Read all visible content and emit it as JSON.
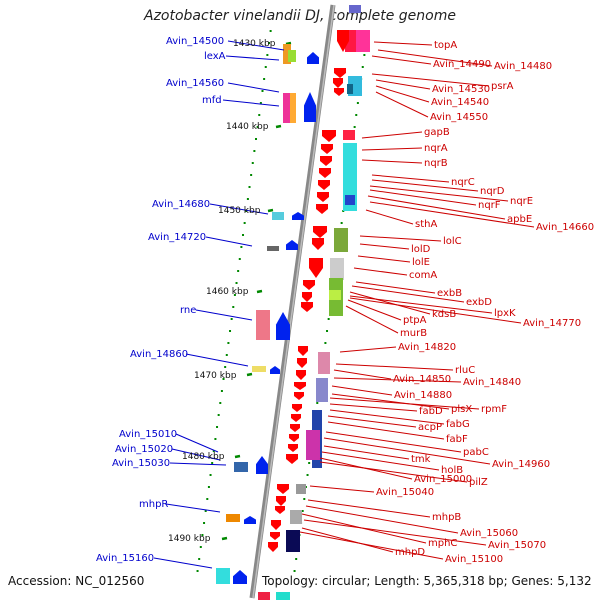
{
  "title": "Azotobacter vinelandii DJ, complete genome",
  "footer": {
    "accession": "Accession: NC_012560",
    "summary": "Topology: circular; Length: 5,365,318 bp; Genes: 5,132"
  },
  "colors": {
    "left_labels": "#0000cc",
    "right_labels": "#cc0000",
    "backbone": "#888888",
    "ticks": "#008800"
  },
  "scale": [
    {
      "label": "1430 kbp"
    },
    {
      "label": "1440 kbp"
    },
    {
      "label": "1450 kbp"
    },
    {
      "label": "1460 kbp"
    },
    {
      "label": "1470 kbp"
    },
    {
      "label": "1480 kbp"
    },
    {
      "label": "1490 kbp"
    }
  ],
  "left_genes": [
    "Avin_14500",
    "lexA",
    "Avin_14560",
    "mfd",
    "Avin_14680",
    "Avin_14720",
    "rne",
    "Avin_14860",
    "Avin_15010",
    "Avin_15020",
    "Avin_15030",
    "mhpR",
    "Avin_15160"
  ],
  "right_genes": [
    "topA",
    "Avin_14490",
    "Avin_14480",
    "psrA",
    "Avin_14530",
    "Avin_14540",
    "Avin_14550",
    "gapB",
    "nqrA",
    "nqrB",
    "nqrC",
    "nqrD",
    "nqrE",
    "nqrF",
    "apbE",
    "sthA",
    "Avin_14660",
    "lolC",
    "lolD",
    "lolE",
    "comA",
    "exbB",
    "exbD",
    "kdsB",
    "lpxK",
    "ptpA",
    "Avin_14770",
    "murB",
    "Avin_14820",
    "rluC",
    "Avin_14850",
    "Avin_14840",
    "Avin_14880",
    "plsX",
    "rpmF",
    "fabD",
    "fabG",
    "acpP",
    "fabF",
    "pabC",
    "Avin_14960",
    "tmk",
    "holB",
    "Avin_15000",
    "pilZ",
    "Avin_15040",
    "mhpB",
    "Avin_15060",
    "mphC",
    "Avin_15070",
    "mhpD",
    "Avin_15100"
  ]
}
